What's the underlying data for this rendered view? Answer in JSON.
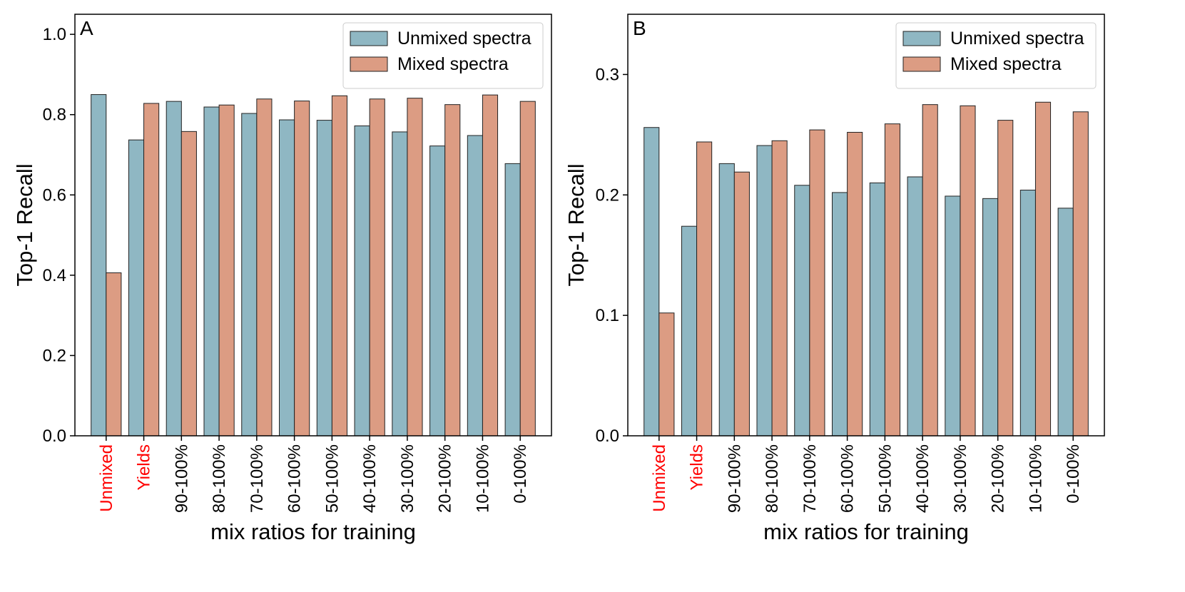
{
  "colors": {
    "unmixed": "#8fb7c3",
    "mixed": "#dc9c83",
    "highlight_label": "#ff0000",
    "edge": "#222222"
  },
  "chart_data": [
    {
      "type": "bar",
      "panel_label": "A",
      "xlabel": "mix ratios for training",
      "ylabel": "Top-1 Recall",
      "ylim": [
        0,
        1.05
      ],
      "yticks": [
        0.0,
        0.2,
        0.4,
        0.6,
        0.8,
        1.0
      ],
      "ytick_labels": [
        "0.0",
        "0.2",
        "0.4",
        "0.6",
        "0.8",
        "1.0"
      ],
      "categories": [
        "Unmixed",
        "Yields",
        "90-100%",
        "80-100%",
        "70-100%",
        "60-100%",
        "50-100%",
        "40-100%",
        "30-100%",
        "20-100%",
        "10-100%",
        "0-100%"
      ],
      "highlighted_categories": [
        "Unmixed",
        "Yields"
      ],
      "legend_position": "top-right",
      "series": [
        {
          "name": "Unmixed spectra",
          "values": [
            0.85,
            0.737,
            0.833,
            0.819,
            0.803,
            0.787,
            0.786,
            0.772,
            0.757,
            0.722,
            0.748,
            0.678
          ]
        },
        {
          "name": "Mixed spectra",
          "values": [
            0.406,
            0.828,
            0.758,
            0.824,
            0.839,
            0.834,
            0.847,
            0.839,
            0.841,
            0.825,
            0.849,
            0.833
          ]
        }
      ]
    },
    {
      "type": "bar",
      "panel_label": "B",
      "xlabel": "mix ratios for training",
      "ylabel": "Top-1 Recall",
      "ylim": [
        0,
        0.35
      ],
      "yticks": [
        0.0,
        0.1,
        0.2,
        0.3
      ],
      "ytick_labels": [
        "0.0",
        "0.1",
        "0.2",
        "0.3"
      ],
      "categories": [
        "Unmixed",
        "Yields",
        "90-100%",
        "80-100%",
        "70-100%",
        "60-100%",
        "50-100%",
        "40-100%",
        "30-100%",
        "20-100%",
        "10-100%",
        "0-100%"
      ],
      "highlighted_categories": [
        "Unmixed",
        "Yields"
      ],
      "legend_position": "top-right",
      "series": [
        {
          "name": "Unmixed spectra",
          "values": [
            0.256,
            0.174,
            0.226,
            0.241,
            0.208,
            0.202,
            0.21,
            0.215,
            0.199,
            0.197,
            0.204,
            0.189
          ]
        },
        {
          "name": "Mixed spectra",
          "values": [
            0.102,
            0.244,
            0.219,
            0.245,
            0.254,
            0.252,
            0.259,
            0.275,
            0.274,
            0.262,
            0.277,
            0.269
          ]
        }
      ]
    }
  ]
}
